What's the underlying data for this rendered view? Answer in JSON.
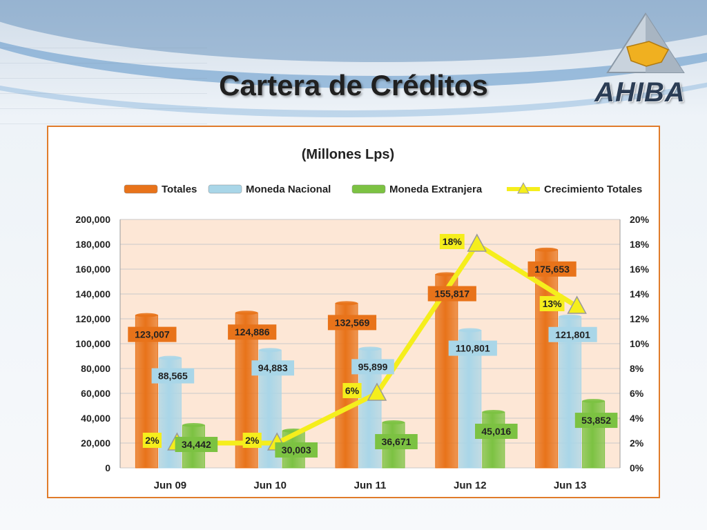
{
  "slide": {
    "title": "Cartera de Créditos",
    "logo_text": "AHIBA"
  },
  "colors": {
    "totales": "#e8731a",
    "nacional": "#a9d6e8",
    "extranjera": "#7cc242",
    "crecimiento": "#f5ee1c",
    "plot_bg": "#fde7d6"
  },
  "chart_data": {
    "type": "bar",
    "title": "(Millones Lps)",
    "categories": [
      "Jun 09",
      "Jun 10",
      "Jun 11",
      "Jun 12",
      "Jun 13"
    ],
    "series": [
      {
        "name": "Totales",
        "type": "bar",
        "values": [
          123007,
          124886,
          132569,
          155817,
          175653
        ],
        "labels": [
          "123,007",
          "124,886",
          "132,569",
          "155,817",
          "175,653"
        ]
      },
      {
        "name": "Moneda Nacional",
        "type": "bar",
        "values": [
          88565,
          94883,
          95899,
          110801,
          121801
        ],
        "labels": [
          "88,565",
          "94,883",
          "95,899",
          "110,801",
          "121,801"
        ]
      },
      {
        "name": "Moneda Extranjera",
        "type": "bar",
        "values": [
          34442,
          30003,
          36671,
          45016,
          53852
        ],
        "labels": [
          "34,442",
          "30,003",
          "36,671",
          "45,016",
          "53,852"
        ]
      },
      {
        "name": "Crecimiento Totales",
        "type": "line",
        "axis": "right",
        "values": [
          2,
          2,
          6,
          18,
          13
        ],
        "labels": [
          "2%",
          "2%",
          "6%",
          "18%",
          "13%"
        ]
      }
    ],
    "ylim": [
      0,
      200000
    ],
    "y2lim": [
      0,
      20
    ],
    "yticks": [
      "0",
      "20,000",
      "40,000",
      "60,000",
      "80,000",
      "100,000",
      "120,000",
      "140,000",
      "160,000",
      "180,000",
      "200,000"
    ],
    "y2ticks": [
      "0%",
      "2%",
      "4%",
      "6%",
      "8%",
      "10%",
      "12%",
      "14%",
      "16%",
      "18%",
      "20%"
    ],
    "legend": "top",
    "grid": true
  }
}
